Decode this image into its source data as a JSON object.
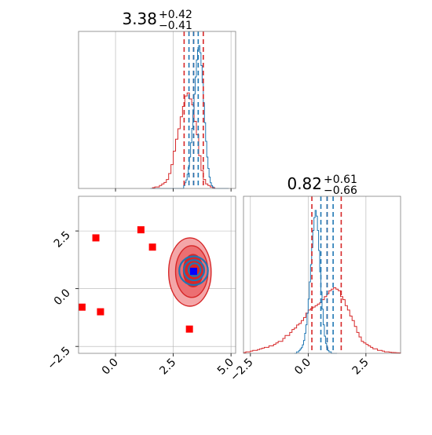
{
  "chart_data": {
    "type": "corner",
    "colors": {
      "blue": "#1f77b4",
      "red": "#d62728",
      "marker_red": "#ff0000",
      "marker_blue": "#0000ff",
      "grid": "#b0b0b0"
    },
    "param1": {
      "title_main": "3.38",
      "title_plus": "+0.42",
      "title_minus": "−0.41",
      "range": [
        -1.6,
        5.2
      ],
      "quantiles_blue": [
        3.18,
        3.38,
        3.58
      ],
      "quantiles_red": [
        2.97,
        3.38,
        3.8
      ],
      "hist_blue": {
        "edges_start": 1.5,
        "bin_width": 0.05,
        "values": [
          0,
          0,
          0,
          0,
          0,
          0,
          0,
          0,
          0,
          0,
          0,
          0,
          0,
          0,
          0,
          0,
          0,
          0,
          0,
          0,
          0,
          0,
          0,
          0,
          0,
          0,
          0,
          0,
          0,
          0.02,
          0.04,
          0.06,
          0.1,
          0.15,
          0.22,
          0.32,
          0.42,
          0.55,
          0.66,
          0.78,
          0.9,
          0.97,
          1.0,
          0.95,
          0.86,
          0.74,
          0.6,
          0.46,
          0.33,
          0.22,
          0.14,
          0.08,
          0.04,
          0.02,
          0.01,
          0,
          0,
          0,
          0,
          0,
          0,
          0,
          0,
          0,
          0,
          0,
          0,
          0
        ]
      },
      "hist_red": {
        "edges_start": 1.6,
        "bin_width": 0.1,
        "values": [
          0.005,
          0.01,
          0.01,
          0.02,
          0.03,
          0.04,
          0.06,
          0.1,
          0.16,
          0.25,
          0.33,
          0.4,
          0.48,
          0.55,
          0.62,
          0.64,
          0.6,
          0.56,
          0.45,
          0.36,
          0.22,
          0.12,
          0.06,
          0.03,
          0.02,
          0.01,
          0.005
        ]
      },
      "ticks": [
        "0.0",
        "2.5",
        "5.0"
      ],
      "tick_values": [
        0,
        2.5,
        5.0
      ]
    },
    "param2": {
      "title_main": "0.82",
      "title_plus": "+0.61",
      "title_minus": "−0.66",
      "range": [
        -2.8,
        4.0
      ],
      "quantiles_blue": [
        0.55,
        0.82,
        1.08
      ],
      "quantiles_red": [
        0.16,
        0.82,
        1.43
      ],
      "hist_blue": {
        "edges_start": -0.6,
        "bin_width": 0.05,
        "values": [
          0,
          0,
          0.01,
          0.01,
          0.02,
          0.03,
          0.04,
          0.06,
          0.09,
          0.14,
          0.2,
          0.28,
          0.38,
          0.5,
          0.62,
          0.74,
          0.86,
          0.95,
          1.0,
          0.96,
          0.86,
          0.72,
          0.57,
          0.43,
          0.31,
          0.2,
          0.12,
          0.07,
          0.04,
          0.02,
          0.01,
          0.01,
          0,
          0,
          0,
          0,
          0
        ]
      },
      "hist_red": {
        "edges_start": -2.8,
        "bin_width": 0.1,
        "values": [
          0.005,
          0.01,
          0.01,
          0.015,
          0.02,
          0.02,
          0.025,
          0.03,
          0.035,
          0.04,
          0.04,
          0.05,
          0.05,
          0.06,
          0.07,
          0.08,
          0.08,
          0.1,
          0.12,
          0.12,
          0.14,
          0.16,
          0.17,
          0.19,
          0.2,
          0.22,
          0.24,
          0.27,
          0.29,
          0.3,
          0.31,
          0.32,
          0.33,
          0.34,
          0.36,
          0.38,
          0.4,
          0.42,
          0.43,
          0.44,
          0.43,
          0.42,
          0.38,
          0.36,
          0.32,
          0.29,
          0.25,
          0.22,
          0.18,
          0.14,
          0.11,
          0.08,
          0.07,
          0.06,
          0.05,
          0.04,
          0.03,
          0.03,
          0.02,
          0.02,
          0.015,
          0.01,
          0.01,
          0.008,
          0.006,
          0.005,
          0.004,
          0.003
        ]
      },
      "ticks_x": [
        "−2.5",
        "0.0",
        "2.5"
      ],
      "tick_values_x": [
        -2.5,
        0,
        2.5
      ],
      "ticks_y": [
        "−2.5",
        "0.0",
        "2.5"
      ],
      "tick_values_y": [
        -2.5,
        0,
        2.5
      ]
    },
    "joint": {
      "red_contours": [
        {
          "cx": 3.22,
          "cy": 0.72,
          "rx": 0.92,
          "ry": 1.48,
          "fill": "#f4a6a8"
        },
        {
          "cx": 3.3,
          "cy": 0.74,
          "rx": 0.7,
          "ry": 1.12,
          "fill": "#ec6f72"
        },
        {
          "cx": 3.36,
          "cy": 0.78,
          "rx": 0.42,
          "ry": 0.7,
          "fill": "#d62728"
        }
      ],
      "blue_contours": [
        {
          "cx": 3.38,
          "cy": 0.78,
          "rx": 0.62,
          "ry": 0.62
        },
        {
          "cx": 3.4,
          "cy": 0.8,
          "rx": 0.44,
          "ry": 0.44
        },
        {
          "cx": 3.42,
          "cy": 0.82,
          "rx": 0.26,
          "ry": 0.28
        }
      ],
      "red_markers": [
        {
          "x": -0.85,
          "y": 2.2
        },
        {
          "x": 1.1,
          "y": 2.55
        },
        {
          "x": 1.6,
          "y": 1.8
        },
        {
          "x": -1.45,
          "y": -0.8
        },
        {
          "x": -0.65,
          "y": -1.0
        },
        {
          "x": 3.2,
          "y": -1.75
        }
      ],
      "blue_marker": {
        "x": 3.38,
        "y": 0.75
      }
    }
  }
}
